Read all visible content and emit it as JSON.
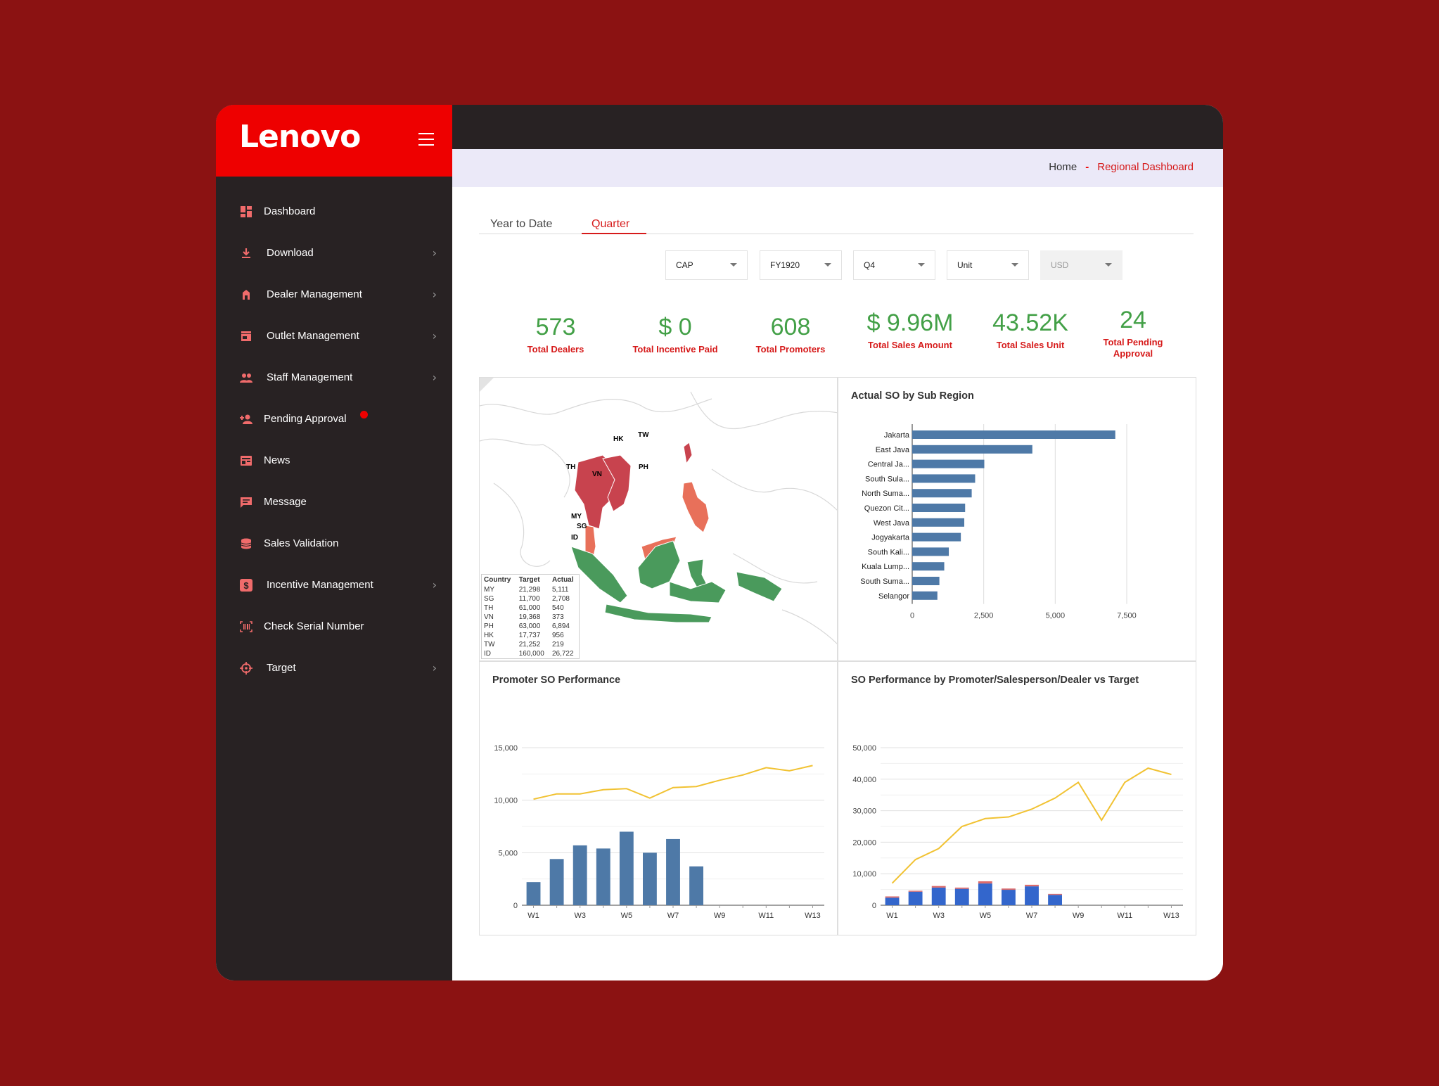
{
  "brand": {
    "logo": "Lenovo",
    "primary": "#ee0000",
    "sidebar_bg": "#282223",
    "page_bg": "#8b1212",
    "kpi_green": "#43a047"
  },
  "sidebar": {
    "items": [
      {
        "label": "Dashboard",
        "icon": "dashboard-icon",
        "chevron": false
      },
      {
        "label": "Download",
        "icon": "download-icon",
        "chevron": true
      },
      {
        "label": "Dealer Management",
        "icon": "building-icon",
        "chevron": true
      },
      {
        "label": "Outlet Management",
        "icon": "store-icon",
        "chevron": true
      },
      {
        "label": "Staff Management",
        "icon": "people-icon",
        "chevron": true
      },
      {
        "label": "Pending Approval",
        "icon": "person-add-icon",
        "chevron": false,
        "badge": true
      },
      {
        "label": "News",
        "icon": "news-icon",
        "chevron": false
      },
      {
        "label": "Message",
        "icon": "message-icon",
        "chevron": false
      },
      {
        "label": "Sales Validation",
        "icon": "database-icon",
        "chevron": false
      },
      {
        "label": "Incentive Management",
        "icon": "dollar-icon",
        "chevron": true
      },
      {
        "label": "Check Serial Number",
        "icon": "barcode-icon",
        "chevron": false
      },
      {
        "label": "Target",
        "icon": "crosshair-icon",
        "chevron": true
      }
    ]
  },
  "breadcrumb": {
    "home": "Home",
    "separator": "-",
    "current": "Regional Dashboard"
  },
  "tabs": [
    {
      "label": "Year to Date"
    },
    {
      "label": "Quarter"
    }
  ],
  "filters": [
    {
      "value": "CAP"
    },
    {
      "value": "FY1920"
    },
    {
      "value": "Q4"
    },
    {
      "value": "Unit"
    },
    {
      "value": "USD",
      "disabled": true
    }
  ],
  "kpis": [
    {
      "value": "573",
      "label": "Total Dealers"
    },
    {
      "value": "$ 0",
      "label": "Total Incentive Paid"
    },
    {
      "value": "608",
      "label": "Total Promoters"
    },
    {
      "value": "$ 9.96M",
      "label": "Total Sales Amount"
    },
    {
      "value": "43.52K",
      "label": "Total Sales Unit"
    },
    {
      "value": "24",
      "label": "Total Pending Approval"
    }
  ],
  "map": {
    "labels": [
      "HK",
      "TW",
      "TH",
      "VN",
      "PH",
      "MY",
      "SG",
      "ID"
    ],
    "table": {
      "headers": [
        "Country",
        "Target",
        "Actual"
      ],
      "rows": [
        [
          "MY",
          "21,298",
          "5,111"
        ],
        [
          "SG",
          "11,700",
          "2,708"
        ],
        [
          "TH",
          "61,000",
          "540"
        ],
        [
          "VN",
          "19,368",
          "373"
        ],
        [
          "PH",
          "63,000",
          "6,894"
        ],
        [
          "HK",
          "17,737",
          "956"
        ],
        [
          "TW",
          "21,252",
          "219"
        ],
        [
          "ID",
          "160,000",
          "26,722"
        ]
      ]
    },
    "colors": {
      "low": "#c8434e",
      "mid": "#e8705a",
      "high": "#4a9a5c"
    }
  },
  "chart_data": [
    {
      "type": "bar",
      "title": "Actual SO by Sub Region",
      "orientation": "horizontal",
      "categories": [
        "Jakarta",
        "East Java",
        "Central Ja...",
        "South Sula...",
        "North Suma...",
        "Quezon Cit...",
        "West Java",
        "Jogyakarta",
        "South Kali...",
        "Kuala Lump...",
        "South Suma...",
        "Selangor"
      ],
      "values": [
        7100,
        4200,
        2520,
        2200,
        2080,
        1850,
        1820,
        1700,
        1280,
        1120,
        950,
        880
      ],
      "xlim": [
        0,
        7500
      ],
      "xticks": [
        "0",
        "2,500",
        "5,000",
        "7,500"
      ],
      "color": "#4e79a7",
      "grid": true
    },
    {
      "type": "bar+line",
      "title": "Promoter SO Performance",
      "categories": [
        "W1",
        "W2",
        "W3",
        "W4",
        "W5",
        "W6",
        "W7",
        "W8",
        "W9",
        "W10",
        "W11",
        "W12",
        "W13"
      ],
      "xtick_labels": [
        "W1",
        "",
        "W3",
        "",
        "W5",
        "",
        "W7",
        "",
        "W9",
        "",
        "W11",
        "",
        "W13"
      ],
      "bar_values": [
        2200,
        4400,
        5700,
        5400,
        7000,
        5000,
        6300,
        3700,
        0,
        0,
        0,
        0,
        0
      ],
      "line_values": [
        10100,
        10600,
        10600,
        11000,
        11100,
        10200,
        11200,
        11300,
        11900,
        12400,
        13100,
        12800,
        13300
      ],
      "ylim": [
        0,
        15000
      ],
      "yticks": [
        "0",
        "5,000",
        "10,000",
        "15,000"
      ],
      "bar_color": "#4e79a7",
      "line_color": "#f1c232"
    },
    {
      "type": "stacked-bar+line",
      "title": "SO Performance by Promoter/Salesperson/Dealer vs Target",
      "categories": [
        "W1",
        "W2",
        "W3",
        "W4",
        "W5",
        "W6",
        "W7",
        "W8",
        "W9",
        "W10",
        "W11",
        "W12",
        "W13"
      ],
      "xtick_labels": [
        "W1",
        "",
        "W3",
        "",
        "W5",
        "",
        "W7",
        "",
        "W9",
        "",
        "W11",
        "",
        "W13"
      ],
      "bar_values": [
        2400,
        4300,
        5600,
        5200,
        6900,
        4900,
        6000,
        3300,
        0,
        0,
        0,
        0,
        0
      ],
      "bar_top_values": [
        400,
        300,
        500,
        400,
        700,
        400,
        500,
        300,
        0,
        0,
        0,
        0,
        0
      ],
      "line_values": [
        7000,
        14500,
        18000,
        25000,
        27500,
        28000,
        30500,
        34000,
        39000,
        27000,
        39000,
        43500,
        41500
      ],
      "ylim": [
        0,
        50000
      ],
      "yticks": [
        "0",
        "10,000",
        "20,000",
        "30,000",
        "40,000",
        "50,000"
      ],
      "bar_color": "#3366cc",
      "bar_top_color": "#dc6b6b",
      "line_color": "#f1c232"
    }
  ]
}
